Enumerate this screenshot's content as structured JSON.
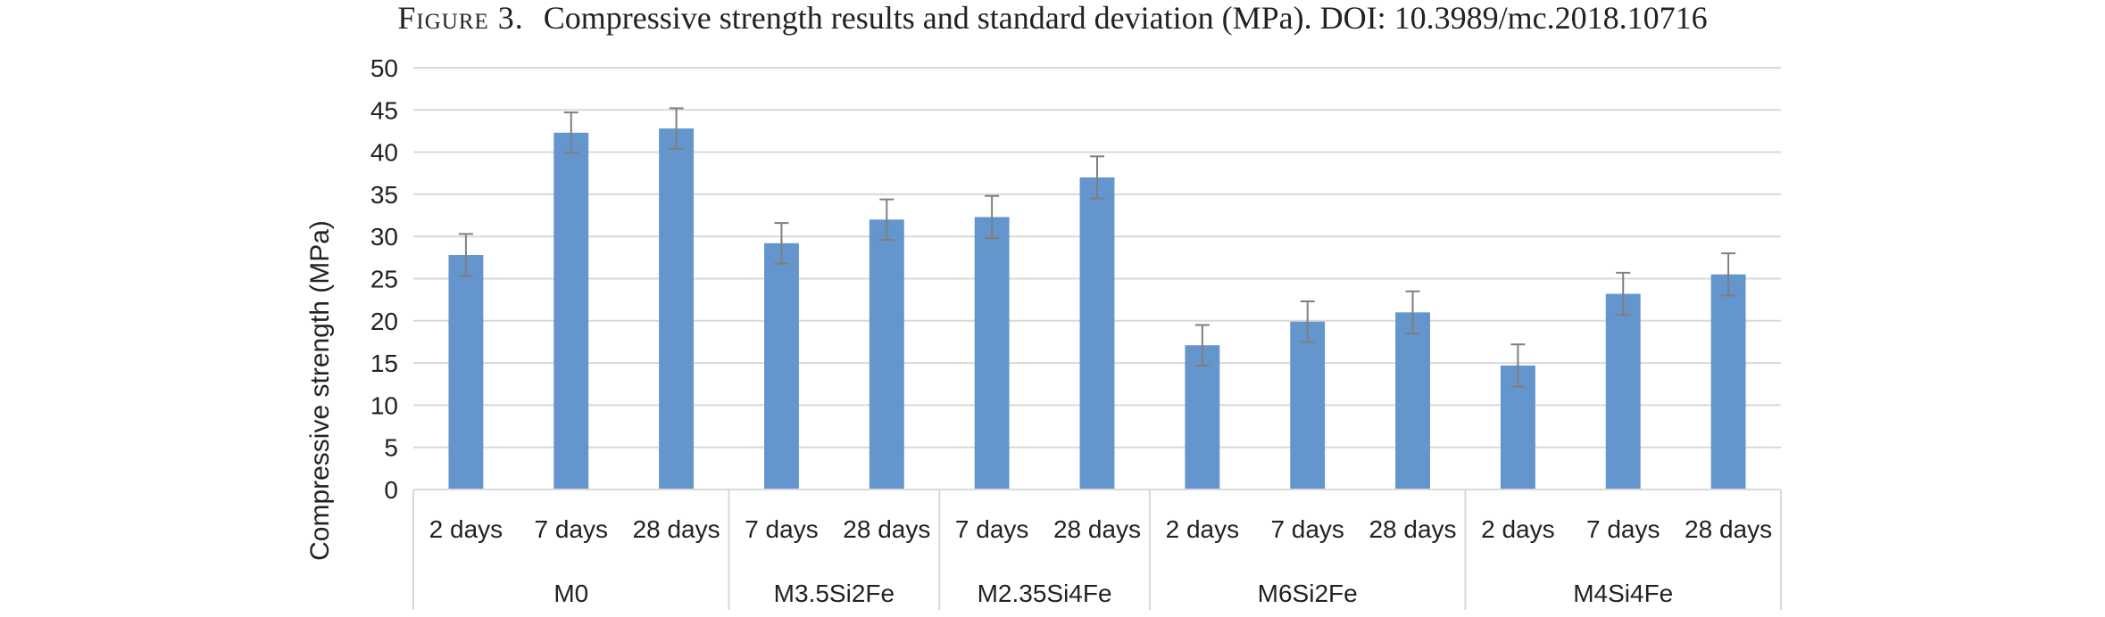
{
  "caption": {
    "figure": "Figure 3.",
    "text": "Compressive strength results and standard deviation (MPa). DOI: 10.3989/mc.2018.10716"
  },
  "chart_data": {
    "type": "bar",
    "title": "",
    "ylabel": "Compressive strength (MPa)",
    "xlabel": "",
    "ylim": [
      0,
      50
    ],
    "y_ticks": [
      0,
      5,
      10,
      15,
      20,
      25,
      30,
      35,
      40,
      45,
      50
    ],
    "grid": true,
    "bar_color": "#6495cd",
    "errorbar_color": "#7f7f7f",
    "groups": [
      {
        "name": "M0",
        "bars": [
          {
            "label": "2 days",
            "value": 27.8,
            "sd": 2.5
          },
          {
            "label": "7 days",
            "value": 42.3,
            "sd": 2.4
          },
          {
            "label": "28 days",
            "value": 42.8,
            "sd": 2.4
          }
        ]
      },
      {
        "name": "M3.5Si2Fe",
        "bars": [
          {
            "label": "7 days",
            "value": 29.2,
            "sd": 2.4
          },
          {
            "label": "28 days",
            "value": 32.0,
            "sd": 2.4
          }
        ]
      },
      {
        "name": "M2.35Si4Fe",
        "bars": [
          {
            "label": "7 days",
            "value": 32.3,
            "sd": 2.5
          },
          {
            "label": "28 days",
            "value": 37.0,
            "sd": 2.5
          }
        ]
      },
      {
        "name": "M6Si2Fe",
        "bars": [
          {
            "label": "2 days",
            "value": 17.1,
            "sd": 2.4
          },
          {
            "label": "7 days",
            "value": 19.9,
            "sd": 2.4
          },
          {
            "label": "28 days",
            "value": 21.0,
            "sd": 2.5
          }
        ]
      },
      {
        "name": "M4Si4Fe",
        "bars": [
          {
            "label": "2 days",
            "value": 14.7,
            "sd": 2.5
          },
          {
            "label": "7 days",
            "value": 23.2,
            "sd": 2.5
          },
          {
            "label": "28 days",
            "value": 25.5,
            "sd": 2.5
          }
        ]
      }
    ]
  }
}
